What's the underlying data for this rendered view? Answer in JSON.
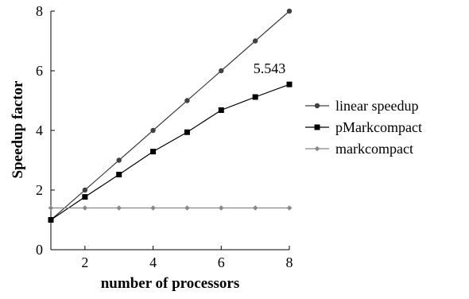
{
  "chart_data": {
    "type": "line",
    "title": "",
    "xlabel": "number of processors",
    "ylabel": "Speedup factor",
    "xlim": [
      1,
      8
    ],
    "ylim": [
      0,
      8
    ],
    "x_ticks": [
      2,
      4,
      6,
      8
    ],
    "y_ticks": [
      0,
      2,
      4,
      6,
      8
    ],
    "grid": false,
    "legend_position": "right",
    "series": [
      {
        "name": "linear speedup",
        "color": "#404040",
        "marker": "circle",
        "x": [
          1,
          2,
          3,
          4,
          5,
          6,
          7,
          8
        ],
        "values": [
          1,
          2,
          3,
          4,
          5,
          6,
          7,
          8
        ]
      },
      {
        "name": "pMarkcompact",
        "color": "#000000",
        "marker": "square",
        "x": [
          1,
          2,
          3,
          4,
          5,
          6,
          7,
          8
        ],
        "values": [
          1.0,
          1.77,
          2.52,
          3.29,
          3.94,
          4.68,
          5.12,
          5.543
        ]
      },
      {
        "name": "markcompact",
        "color": "#888888",
        "marker": "diamond",
        "x": [
          1,
          2,
          3,
          4,
          5,
          6,
          7,
          8
        ],
        "values": [
          1.4,
          1.4,
          1.4,
          1.4,
          1.4,
          1.4,
          1.4,
          1.4
        ]
      }
    ],
    "annotations": [
      {
        "text": "5.543",
        "x": 8,
        "y": 5.543
      }
    ]
  }
}
